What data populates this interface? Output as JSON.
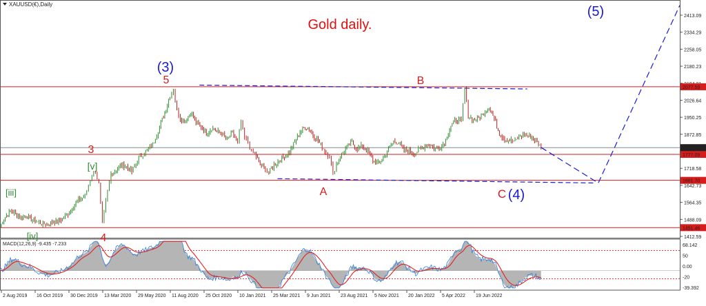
{
  "header": {
    "symbol_label": "XAUUSD(€),Daily"
  },
  "chart_data": [
    {
      "type": "line",
      "panel": "price",
      "title": "Gold daily.",
      "ylim": [
        1412.59,
        2445.0
      ],
      "y_ticks": [
        "2413.09",
        "2334.29",
        "2258.05",
        "2180.23",
        "2104.01",
        "2026.64",
        "1950.25",
        "1872.85",
        "1796.16",
        "1718.58",
        "1642.73",
        "1564.35",
        "1488.09",
        "1412.59"
      ],
      "x_ticks": [
        "2 Aug 2019",
        "16 Oct 2019",
        "30 Dec 2019",
        "13 Mar 2020",
        "29 May 2020",
        "11 Aug 2020",
        "25 Oct 2020",
        "10 Jan 2021",
        "25 Mar 2021",
        "9 Jun 2021",
        "23 Aug 2021",
        "5 Nov 2021",
        "20 Jan 2022",
        "5 Apr 2022",
        "19 Jun 2022"
      ],
      "price_points": [
        [
          0,
          1455
        ],
        [
          3,
          1500
        ],
        [
          6,
          1528
        ],
        [
          9,
          1510
        ],
        [
          12,
          1498
        ],
        [
          15,
          1505
        ],
        [
          18,
          1490
        ],
        [
          21,
          1478
        ],
        [
          24,
          1470
        ],
        [
          27,
          1466
        ],
        [
          30,
          1476
        ],
        [
          33,
          1478
        ],
        [
          36,
          1490
        ],
        [
          40,
          1520
        ],
        [
          43,
          1555
        ],
        [
          46,
          1578
        ],
        [
          49,
          1590
        ],
        [
          51,
          1640
        ],
        [
          53,
          1690
        ],
        [
          55,
          1700
        ],
        [
          57,
          1645
        ],
        [
          59,
          1468
        ],
        [
          60,
          1520
        ],
        [
          62,
          1610
        ],
        [
          64,
          1690
        ],
        [
          67,
          1710
        ],
        [
          70,
          1730
        ],
        [
          73,
          1722
        ],
        [
          76,
          1700
        ],
        [
          80,
          1760
        ],
        [
          84,
          1790
        ],
        [
          88,
          1820
        ],
        [
          92,
          1900
        ],
        [
          95,
          1960
        ],
        [
          98,
          2040
        ],
        [
          100,
          2065
        ],
        [
          102,
          1975
        ],
        [
          104,
          1940
        ],
        [
          107,
          1925
        ],
        [
          110,
          1965
        ],
        [
          113,
          1915
        ],
        [
          116,
          1900
        ],
        [
          119,
          1870
        ],
        [
          122,
          1895
        ],
        [
          125,
          1878
        ],
        [
          128,
          1870
        ],
        [
          131,
          1840
        ],
        [
          134,
          1875
        ],
        [
          137,
          1830
        ],
        [
          139,
          1920
        ],
        [
          141,
          1850
        ],
        [
          143,
          1830
        ],
        [
          145,
          1790
        ],
        [
          147,
          1780
        ],
        [
          150,
          1730
        ],
        [
          153,
          1715
        ],
        [
          155,
          1695
        ],
        [
          158,
          1730
        ],
        [
          161,
          1750
        ],
        [
          164,
          1770
        ],
        [
          167,
          1790
        ],
        [
          170,
          1830
        ],
        [
          173,
          1880
        ],
        [
          176,
          1900
        ],
        [
          179,
          1878
        ],
        [
          182,
          1850
        ],
        [
          185,
          1820
        ],
        [
          188,
          1785
        ],
        [
          190,
          1770
        ],
        [
          192,
          1690
        ],
        [
          194,
          1735
        ],
        [
          197,
          1775
        ],
        [
          200,
          1810
        ],
        [
          203,
          1830
        ],
        [
          206,
          1800
        ],
        [
          209,
          1815
        ],
        [
          212,
          1790
        ],
        [
          215,
          1750
        ],
        [
          218,
          1735
        ],
        [
          221,
          1760
        ],
        [
          224,
          1800
        ],
        [
          227,
          1835
        ],
        [
          230,
          1830
        ],
        [
          233,
          1795
        ],
        [
          236,
          1790
        ],
        [
          239,
          1780
        ],
        [
          242,
          1800
        ],
        [
          245,
          1815
        ],
        [
          248,
          1820
        ],
        [
          251,
          1800
        ],
        [
          254,
          1810
        ],
        [
          257,
          1840
        ],
        [
          260,
          1905
        ],
        [
          263,
          1930
        ],
        [
          266,
          1925
        ],
        [
          268,
          2070
        ],
        [
          270,
          1950
        ],
        [
          273,
          1930
        ],
        [
          276,
          1940
        ],
        [
          279,
          1960
        ],
        [
          282,
          1990
        ],
        [
          285,
          1935
        ],
        [
          288,
          1870
        ],
        [
          291,
          1845
        ],
        [
          294,
          1840
        ],
        [
          297,
          1835
        ],
        [
          300,
          1860
        ],
        [
          303,
          1865
        ],
        [
          306,
          1855
        ],
        [
          309,
          1840
        ],
        [
          312,
          1808
        ]
      ],
      "horizontal_lines": [
        {
          "value": 2077.59,
          "label": "2077.59",
          "color": "#d81b1b"
        },
        {
          "value": 1777.09,
          "label": "1777.09",
          "color": "#d81b1b"
        },
        {
          "value": 1661.7,
          "label": "1661.70",
          "color": "#d81b1b"
        },
        {
          "value": 1451.46,
          "label": "1451.46",
          "color": "#d81b1b"
        },
        {
          "value": 1807.2,
          "label": "1807.20",
          "color": "#888888"
        }
      ],
      "wave_labels": [
        {
          "text": "(3)",
          "color": "#1a1ad6"
        },
        {
          "text": "5",
          "color": "#d81b1b"
        },
        {
          "text": "3",
          "color": "#d81b1b"
        },
        {
          "text": "[v]",
          "color": "#2e8b2e"
        },
        {
          "text": "[iii]",
          "color": "#2e8b2e"
        },
        {
          "text": "[iv]",
          "color": "#2e8b2e"
        },
        {
          "text": "4",
          "color": "#d81b1b"
        },
        {
          "text": "B",
          "color": "#d81b1b"
        },
        {
          "text": "A",
          "color": "#d81b1b"
        },
        {
          "text": "C",
          "color": "#d81b1b"
        },
        {
          "text": "(4)",
          "color": "#1a1ad6"
        },
        {
          "text": "(5)",
          "color": "#1a1ad6"
        }
      ],
      "projection_points": [
        [
          312,
          1808
        ],
        [
          345,
          1650
        ],
        [
          392,
          2440
        ]
      ],
      "channel_lines": [
        [
          [
            115,
            2085
          ],
          [
            304,
            2068
          ]
        ],
        [
          [
            160,
            1669
          ],
          [
            343,
            1650
          ]
        ]
      ],
      "colors": {
        "up_bar": "#2e8b2e",
        "down_bar": "#b22222",
        "level_line": "#d81b1b",
        "wave_line": "#1a1ad6"
      }
    },
    {
      "type": "line",
      "panel": "macd",
      "title": "MACD(12,26,9) -9.435 -7.233",
      "ylim": [
        -45,
        75
      ],
      "y_ticks": [
        "68.142",
        "50",
        "0.00",
        "-20",
        "-39.392"
      ],
      "dotted_levels": [
        50,
        -20
      ],
      "colors": {
        "histogram": "#b5b5b5",
        "signal": "#e02020",
        "macd_line": "#2a7de1"
      }
    }
  ]
}
